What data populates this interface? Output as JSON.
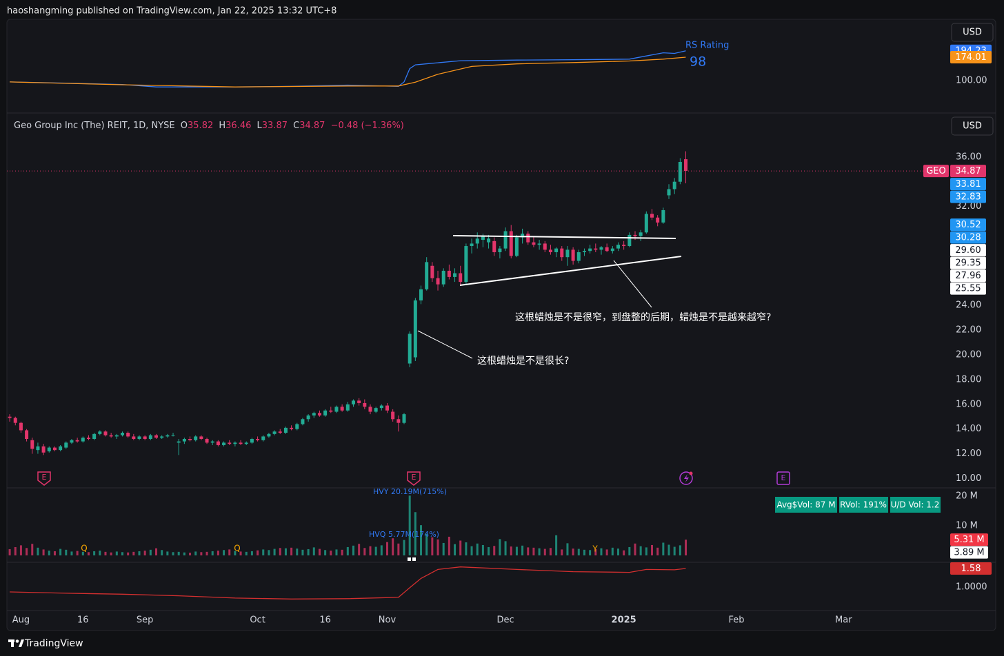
{
  "header": {
    "publisher": "haoshangming published on TradingView.com, Jan 22, 2025 13:32 UTC+8"
  },
  "chart_data": [
    {
      "type": "line",
      "label": "RS Rating",
      "rating": 98,
      "currency": "USD",
      "ylim": [
        0,
        293.7
      ],
      "yticks": [
        {
          "value": 100,
          "label": "100.00"
        }
      ],
      "series": [
        {
          "color": "#3179f5",
          "x": [
            0,
            10,
            20,
            26,
            40,
            50,
            60,
            69,
            70,
            71,
            72,
            75,
            80,
            90,
            100,
            110,
            113,
            116,
            118,
            120
          ],
          "values": [
            96,
            92,
            88,
            80,
            80,
            82,
            86,
            82,
            96,
            138,
            150,
            155,
            163,
            165,
            166,
            168,
            178,
            188,
            186,
            194.23
          ]
        },
        {
          "color": "#f7931a",
          "x": [
            0,
            20,
            40,
            60,
            69,
            72,
            76,
            82,
            90,
            100,
            110,
            116,
            120
          ],
          "values": [
            96,
            87,
            80,
            83,
            83,
            95,
            120,
            145,
            153,
            157,
            162,
            168,
            174.01
          ]
        }
      ]
    },
    {
      "type": "candlestick",
      "title": "Geo Group Inc (The) REIT, 1D, NYSE",
      "symbol": "GEO",
      "currency": "USD",
      "ohlc_names": [
        "O",
        "H",
        "L",
        "C"
      ],
      "change": "−0.48 (−1.36%)",
      "up_color": "#22ab94",
      "down_color": "#e2356b",
      "xlim": [
        -0.5,
        166.2
      ],
      "xticks": [
        {
          "value": 2,
          "label": "Aug"
        },
        {
          "value": 13,
          "label": "16"
        },
        {
          "value": 24,
          "label": "Sep"
        },
        {
          "value": 44,
          "label": "Oct"
        },
        {
          "value": 56,
          "label": "16"
        },
        {
          "value": 67,
          "label": "Nov"
        },
        {
          "value": 88,
          "label": "Dec"
        },
        {
          "value": 109,
          "label": "2025"
        },
        {
          "value": 129,
          "label": "Feb"
        },
        {
          "value": 148,
          "label": "Mar"
        }
      ],
      "ylim": [
        9.3,
        39.5
      ],
      "yticks": [
        {
          "value": 10,
          "label": "10.00"
        },
        {
          "value": 12,
          "label": "12.00"
        },
        {
          "value": 14,
          "label": "14.00"
        },
        {
          "value": 16,
          "label": "16.00"
        },
        {
          "value": 18,
          "label": "18.00"
        },
        {
          "value": 20,
          "label": "20.00"
        },
        {
          "value": 22,
          "label": "22.00"
        },
        {
          "value": 24,
          "label": "24.00"
        },
        {
          "value": 32,
          "label": "32.00"
        },
        {
          "value": 36,
          "label": "36.00"
        }
      ],
      "levels": [
        33.81,
        32.83,
        30.52,
        30.28,
        {
          "value": 29.6,
          "label": "29.60"
        },
        29.35,
        27.96,
        25.55
      ],
      "level_colors": [
        "#2196f3",
        "#2196f3",
        "#2196f3",
        "#2196f3",
        "#ffffff",
        "#ffffff",
        "#ffffff",
        "#ffffff"
      ],
      "ohlc": [
        [
          15.0,
          15.2,
          14.6,
          14.9
        ],
        [
          14.9,
          15.0,
          14.3,
          14.5
        ],
        [
          14.5,
          14.6,
          13.7,
          13.9
        ],
        [
          13.9,
          14.0,
          13.0,
          13.2
        ],
        [
          13.1,
          13.3,
          12.0,
          12.4
        ],
        [
          12.3,
          12.9,
          12.0,
          12.6
        ],
        [
          12.6,
          12.8,
          11.9,
          12.1
        ],
        [
          12.2,
          12.6,
          12.1,
          12.5
        ],
        [
          12.5,
          12.6,
          12.2,
          12.3
        ],
        [
          12.3,
          12.7,
          12.2,
          12.6
        ],
        [
          12.5,
          13.0,
          12.4,
          12.9
        ],
        [
          12.9,
          13.2,
          12.8,
          13.1
        ],
        [
          13.1,
          13.3,
          12.9,
          13.0
        ],
        [
          13.0,
          13.4,
          12.9,
          13.3
        ],
        [
          13.3,
          13.5,
          13.1,
          13.2
        ],
        [
          13.2,
          13.7,
          13.1,
          13.6
        ],
        [
          13.6,
          13.9,
          13.5,
          13.8
        ],
        [
          13.8,
          13.9,
          13.4,
          13.5
        ],
        [
          13.5,
          13.7,
          13.3,
          13.4
        ],
        [
          13.4,
          13.6,
          13.2,
          13.5
        ],
        [
          13.5,
          13.8,
          13.4,
          13.7
        ],
        [
          13.7,
          13.8,
          13.3,
          13.4
        ],
        [
          13.4,
          13.6,
          13.1,
          13.2
        ],
        [
          13.2,
          13.5,
          13.1,
          13.4
        ],
        [
          13.4,
          13.5,
          13.1,
          13.2
        ],
        [
          13.2,
          13.6,
          13.1,
          13.5
        ],
        [
          13.5,
          13.6,
          13.2,
          13.3
        ],
        [
          13.3,
          13.5,
          13.2,
          13.4
        ],
        [
          13.4,
          13.6,
          13.3,
          13.5
        ],
        [
          13.5,
          13.7,
          13.4,
          13.5
        ],
        [
          12.9,
          13.2,
          11.9,
          13.0
        ],
        [
          13.0,
          13.3,
          12.8,
          13.2
        ],
        [
          13.2,
          13.4,
          13.0,
          13.1
        ],
        [
          13.1,
          13.5,
          13.0,
          13.4
        ],
        [
          13.4,
          13.5,
          13.1,
          13.2
        ],
        [
          13.2,
          13.3,
          12.8,
          12.9
        ],
        [
          12.9,
          13.1,
          12.7,
          13.0
        ],
        [
          13.0,
          13.1,
          12.6,
          12.7
        ],
        [
          12.7,
          13.0,
          12.6,
          12.9
        ],
        [
          12.9,
          13.1,
          12.7,
          12.8
        ],
        [
          12.8,
          13.0,
          12.6,
          12.9
        ],
        [
          12.9,
          13.1,
          12.7,
          12.8
        ],
        [
          12.8,
          13.0,
          12.7,
          12.9
        ],
        [
          12.9,
          13.3,
          12.8,
          13.2
        ],
        [
          13.2,
          13.4,
          13.0,
          13.1
        ],
        [
          13.1,
          13.5,
          13.0,
          13.4
        ],
        [
          13.4,
          13.7,
          13.3,
          13.6
        ],
        [
          13.6,
          13.9,
          13.5,
          13.8
        ],
        [
          13.8,
          14.0,
          13.6,
          13.7
        ],
        [
          13.7,
          14.2,
          13.6,
          14.1
        ],
        [
          14.1,
          14.3,
          13.9,
          14.0
        ],
        [
          14.0,
          14.5,
          13.9,
          14.4
        ],
        [
          14.4,
          14.9,
          14.3,
          14.8
        ],
        [
          14.8,
          15.2,
          14.6,
          15.1
        ],
        [
          15.1,
          15.4,
          14.9,
          15.3
        ],
        [
          15.3,
          15.5,
          15.0,
          15.1
        ],
        [
          15.1,
          15.6,
          15.0,
          15.5
        ],
        [
          15.5,
          15.8,
          15.3,
          15.4
        ],
        [
          15.4,
          15.9,
          15.3,
          15.8
        ],
        [
          15.8,
          16.0,
          15.4,
          15.5
        ],
        [
          15.5,
          16.2,
          15.4,
          16.0
        ],
        [
          16.0,
          16.4,
          15.8,
          16.3
        ],
        [
          16.3,
          16.5,
          15.9,
          16.1
        ],
        [
          16.1,
          16.4,
          15.6,
          15.8
        ],
        [
          15.8,
          16.0,
          15.2,
          15.4
        ],
        [
          15.4,
          15.8,
          15.3,
          15.7
        ],
        [
          15.7,
          16.0,
          15.5,
          15.9
        ],
        [
          15.9,
          16.1,
          15.3,
          15.5
        ],
        [
          15.4,
          15.6,
          14.6,
          14.8
        ],
        [
          14.8,
          15.1,
          13.8,
          14.5
        ],
        [
          14.5,
          15.3,
          14.4,
          15.2
        ],
        [
          19.3,
          21.9,
          19.0,
          21.7
        ],
        [
          19.8,
          24.6,
          19.5,
          24.4
        ],
        [
          24.4,
          25.6,
          24.1,
          25.3
        ],
        [
          25.3,
          27.9,
          25.2,
          27.5
        ],
        [
          27.2,
          27.5,
          25.9,
          26.2
        ],
        [
          26.2,
          26.8,
          25.2,
          25.7
        ],
        [
          25.7,
          27.0,
          25.5,
          26.8
        ],
        [
          26.8,
          27.3,
          26.1,
          26.3
        ],
        [
          26.3,
          27.0,
          25.9,
          26.6
        ],
        [
          26.6,
          27.2,
          25.6,
          25.9
        ],
        [
          25.9,
          29.0,
          25.7,
          28.8
        ],
        [
          28.8,
          29.4,
          28.2,
          29.0
        ],
        [
          29.0,
          29.9,
          28.6,
          29.4
        ],
        [
          29.3,
          29.8,
          28.7,
          29.6
        ],
        [
          29.1,
          29.7,
          28.6,
          29.4
        ],
        [
          29.2,
          29.5,
          28.0,
          28.3
        ],
        [
          28.3,
          28.8,
          27.8,
          28.6
        ],
        [
          28.6,
          30.3,
          28.4,
          30.0
        ],
        [
          30.0,
          30.5,
          27.8,
          28.0
        ],
        [
          28.0,
          29.7,
          27.9,
          29.5
        ],
        [
          29.5,
          30.2,
          29.0,
          29.8
        ],
        [
          29.8,
          30.0,
          28.9,
          29.1
        ],
        [
          29.1,
          29.6,
          28.7,
          28.9
        ],
        [
          28.9,
          29.3,
          28.5,
          29.0
        ],
        [
          29.0,
          29.2,
          28.3,
          28.5
        ],
        [
          28.5,
          28.9,
          28.1,
          28.3
        ],
        [
          28.3,
          28.7,
          27.9,
          28.6
        ],
        [
          28.6,
          28.8,
          27.6,
          27.9
        ],
        [
          27.9,
          28.8,
          27.2,
          28.5
        ],
        [
          28.5,
          28.7,
          27.3,
          27.6
        ],
        [
          27.6,
          28.5,
          27.4,
          28.3
        ],
        [
          28.3,
          28.6,
          28.0,
          28.4
        ],
        [
          28.4,
          28.9,
          28.2,
          28.6
        ],
        [
          28.6,
          29.0,
          28.3,
          28.5
        ],
        [
          28.5,
          28.8,
          28.1,
          28.7
        ],
        [
          28.7,
          29.0,
          28.3,
          28.4
        ],
        [
          28.4,
          28.8,
          28.2,
          28.6
        ],
        [
          28.6,
          29.1,
          28.4,
          28.9
        ],
        [
          28.9,
          29.2,
          28.5,
          28.8
        ],
        [
          28.8,
          29.9,
          28.7,
          29.7
        ],
        [
          29.7,
          30.0,
          29.3,
          29.6
        ],
        [
          29.6,
          30.1,
          29.2,
          29.9
        ],
        [
          29.9,
          31.6,
          29.8,
          31.4
        ],
        [
          31.4,
          31.8,
          30.9,
          31.1
        ],
        [
          31.1,
          31.3,
          30.4,
          30.7
        ],
        [
          30.7,
          31.9,
          30.6,
          31.7
        ],
        [
          32.9,
          33.8,
          32.6,
          33.4
        ],
        [
          33.4,
          34.3,
          33.0,
          34.0
        ],
        [
          34.0,
          35.9,
          33.8,
          35.6
        ],
        [
          35.82,
          36.46,
          33.87,
          34.87
        ]
      ],
      "annotations": [
        "这根蜡烛是不是很窄，到盘整的后期，蜡烛是不是越来越窄?",
        "这根蜡烛是不是很长?"
      ],
      "event_marks": [
        "E",
        "E",
        "E"
      ]
    },
    {
      "type": "bar",
      "ylim": [
        0,
        22.8
      ],
      "yticks": [
        {
          "value": 20,
          "label": "20 M"
        },
        {
          "value": 10,
          "label": "10 M"
        }
      ],
      "values": [
        2.1,
        2.8,
        3.4,
        2.5,
        3.9,
        2.6,
        2.0,
        1.6,
        1.4,
        2.2,
        1.9,
        1.3,
        1.5,
        1.2,
        1.1,
        1.4,
        1.6,
        1.2,
        1.0,
        1.3,
        1.1,
        1.0,
        1.2,
        1.4,
        1.6,
        1.9,
        2.4,
        1.8,
        1.3,
        1.1,
        1.2,
        1.0,
        0.9,
        1.3,
        1.1,
        1.2,
        1.4,
        1.6,
        1.8,
        2.0,
        1.5,
        1.3,
        1.2,
        1.4,
        1.7,
        2.0,
        1.8,
        2.2,
        2.5,
        2.4,
        2.6,
        2.3,
        1.9,
        2.1,
        2.7,
        2.2,
        1.8,
        1.6,
        2.0,
        1.9,
        2.8,
        3.3,
        3.9,
        2.5,
        3.1,
        2.9,
        3.4,
        4.5,
        5.77,
        4.0,
        5.2,
        20.19,
        14.6,
        10.2,
        7.3,
        6.1,
        5.4,
        4.2,
        6.3,
        3.8,
        5.0,
        4.4,
        3.1,
        4.0,
        3.5,
        2.8,
        3.2,
        5.5,
        4.8,
        3.0,
        2.9,
        3.3,
        2.7,
        2.6,
        2.4,
        2.2,
        2.5,
        6.8,
        2.0,
        4.1,
        2.3,
        2.2,
        1.9,
        1.8,
        2.1,
        2.4,
        2.0,
        2.6,
        2.3,
        1.7,
        2.8,
        4.0,
        3.1,
        2.7,
        3.5,
        2.6,
        4.3,
        3.6,
        2.9,
        3.4,
        5.31
      ],
      "last_label": "5.31 M",
      "average": {
        "value": 3.89,
        "label": "3.89 M"
      },
      "annotations": [
        "HVY 20.19M(715%)",
        "HVQ 5.77M(174%)"
      ],
      "markers": [
        "Q",
        "Q",
        "Y"
      ],
      "chips": [
        "Avg$Vol: 87 M",
        "RVol: 191%",
        "U/D Vol: 1.2"
      ]
    },
    {
      "type": "line",
      "ylim": [
        0.292,
        1.73
      ],
      "yticks": [
        {
          "value": 1,
          "label": "1.0000"
        }
      ],
      "series": [
        {
          "color": "#d32f2f",
          "x": [
            0,
            10,
            20,
            30,
            40,
            50,
            60,
            69,
            71,
            73,
            76,
            80,
            90,
            100,
            110,
            113,
            118,
            120
          ],
          "values": [
            0.85,
            0.81,
            0.78,
            0.73,
            0.66,
            0.63,
            0.64,
            0.68,
            0.98,
            1.27,
            1.55,
            1.63,
            1.55,
            1.48,
            1.46,
            1.55,
            1.54,
            1.58
          ]
        }
      ]
    }
  ],
  "footer": {
    "brand": "TradingView"
  }
}
